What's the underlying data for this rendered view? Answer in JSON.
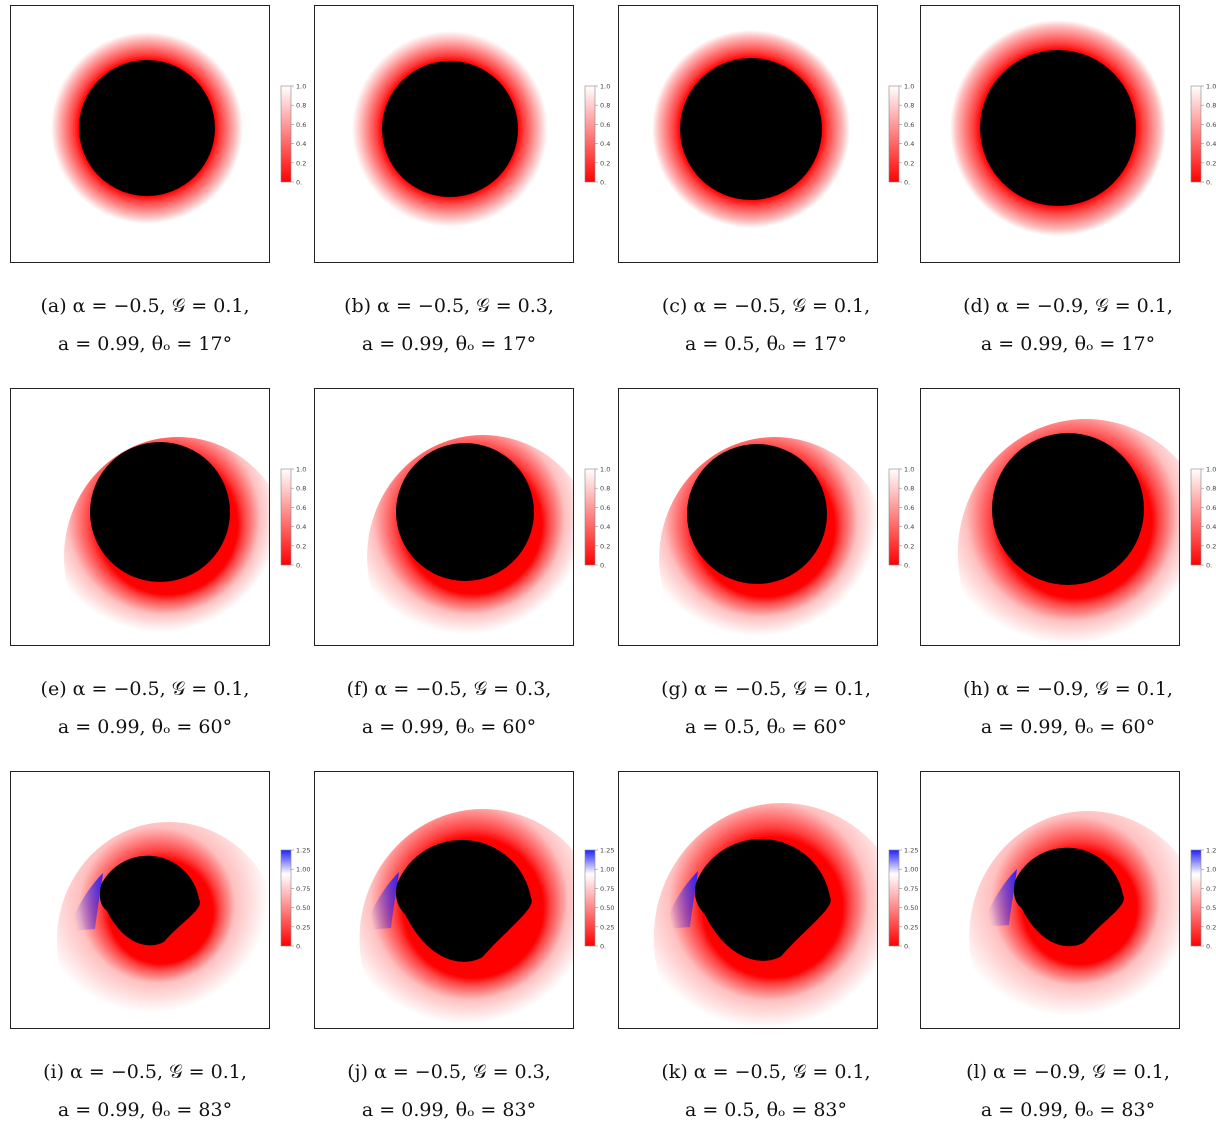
{
  "figure": {
    "colorbar_ticks_std": [
      "1.0",
      "0.8",
      "0.6",
      "0.4",
      "0.2",
      "0."
    ],
    "colorbar_ticks_83": [
      "1.25",
      "1.00",
      "0.75",
      "0.50",
      "0.25",
      "0."
    ],
    "colors": {
      "shadow": "#000000",
      "red": "#ff0000",
      "blue": "#2020ff",
      "white": "#ffffff"
    },
    "panels": [
      {
        "id": "a",
        "caption_line1": "(a) α = −0.5, 𝒢 = 0.1,",
        "caption_line2": "a = 0.99, θₒ = 17°",
        "inclination": 17
      },
      {
        "id": "b",
        "caption_line1": "(b) α = −0.5, 𝒢 = 0.3,",
        "caption_line2": "a = 0.99, θₒ = 17°",
        "inclination": 17
      },
      {
        "id": "c",
        "caption_line1": "(c) α = −0.5, 𝒢 = 0.1,",
        "caption_line2": "a = 0.5, θₒ = 17°",
        "inclination": 17
      },
      {
        "id": "d",
        "caption_line1": "(d) α = −0.9, 𝒢 = 0.1,",
        "caption_line2": "a = 0.99, θₒ = 17°",
        "inclination": 17
      },
      {
        "id": "e",
        "caption_line1": "(e) α = −0.5, 𝒢 = 0.1,",
        "caption_line2": "a = 0.99, θₒ = 60°",
        "inclination": 60
      },
      {
        "id": "f",
        "caption_line1": "(f) α = −0.5, 𝒢 = 0.3,",
        "caption_line2": "a = 0.99, θₒ = 60°",
        "inclination": 60
      },
      {
        "id": "g",
        "caption_line1": "(g) α = −0.5, 𝒢 = 0.1,",
        "caption_line2": "a = 0.5, θₒ = 60°",
        "inclination": 60
      },
      {
        "id": "h",
        "caption_line1": "(h) α = −0.9, 𝒢 = 0.1,",
        "caption_line2": "a = 0.99, θₒ = 60°",
        "inclination": 60
      },
      {
        "id": "i",
        "caption_line1": "(i) α = −0.5, 𝒢 = 0.1,",
        "caption_line2": "a = 0.99, θₒ = 83°",
        "inclination": 83
      },
      {
        "id": "j",
        "caption_line1": "(j) α = −0.5, 𝒢 = 0.3,",
        "caption_line2": "a = 0.99, θₒ = 83°",
        "inclination": 83
      },
      {
        "id": "k",
        "caption_line1": "(k) α = −0.5, 𝒢 = 0.1,",
        "caption_line2": "a = 0.5, θₒ = 83°",
        "inclination": 83
      },
      {
        "id": "l",
        "caption_line1": "(l) α = −0.9, 𝒢 = 0.1,",
        "caption_line2": "a = 0.99, θₒ = 83°",
        "inclination": 83
      }
    ]
  }
}
